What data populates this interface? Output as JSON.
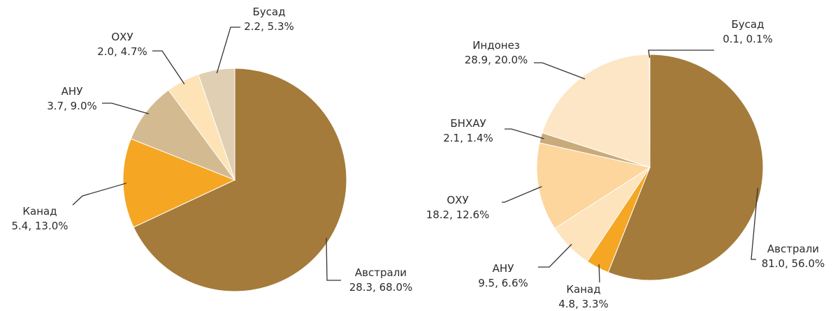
{
  "chart_data": [
    {
      "type": "pie",
      "categories": [
        "Австрали",
        "Канад",
        "АНУ",
        "ОХУ",
        "Бусад"
      ],
      "values": [
        28.3,
        5.4,
        3.7,
        2.0,
        2.2
      ],
      "value_labels": [
        "28.3, 68.0%",
        "5.4, 13.0%",
        "3.7, 9.0%",
        "2.0, 4.7%",
        "2.2, 5.3%"
      ],
      "colors": [
        "#a47b3a",
        "#f5a623",
        "#d3ba91",
        "#fde3b6",
        "#e0cfb3"
      ]
    },
    {
      "type": "pie",
      "categories": [
        "Австрали",
        "Канад",
        "АНУ",
        "ОХУ",
        "БНХАУ",
        "Индонез",
        "Бусад"
      ],
      "values": [
        81.0,
        4.8,
        9.5,
        18.2,
        2.1,
        28.9,
        0.1
      ],
      "value_labels": [
        "81.0, 56.0%",
        "4.8, 3.3%",
        "9.5, 6.6%",
        "18.2, 12.6%",
        "2.1, 1.4%",
        "28.9, 20.0%",
        "0.1, 0.1%"
      ],
      "colors": [
        "#a47b3a",
        "#f5a623",
        "#fde4bd",
        "#fdd69e",
        "#c9aa7b",
        "#fde6c6",
        "#d8c8a8"
      ]
    }
  ]
}
